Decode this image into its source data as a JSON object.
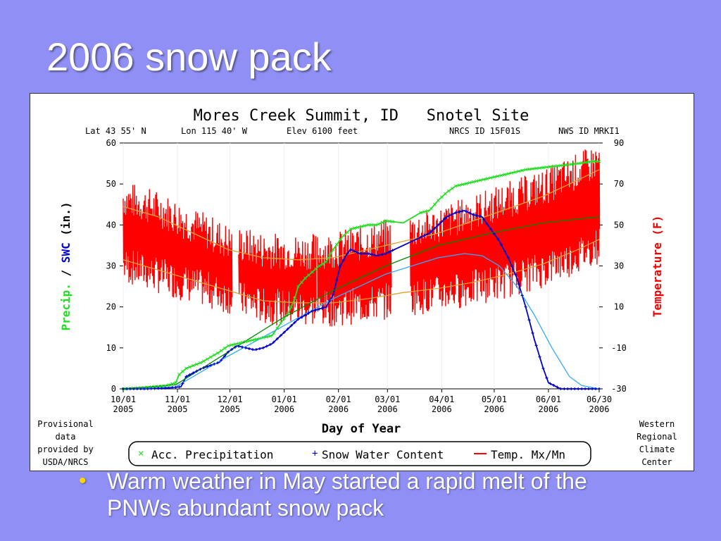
{
  "slide": {
    "title": "2006 snow pack",
    "bullet": "Warm weather in May started a rapid melt of the PNWs abundant snow pack"
  },
  "colors": {
    "background": "#8f8ff5",
    "precip": "#22dd22",
    "swc": "#0000cc",
    "swc_avg": "#33aaff",
    "precip_avg": "#008800",
    "temp": "#ff0000",
    "temp_avg": "#e0a030"
  },
  "chart_data": {
    "type": "line",
    "title": "Mores Creek Summit, ID   Snotel Site",
    "site_info": [
      "Lat 43 55' N",
      "Lon 115 40' W",
      "Elev  6100 feet",
      "NRCS ID 15F01S",
      "NWS ID MRKI1"
    ],
    "xlabel": "Day of Year",
    "ylabel_left_parts": [
      "Precip.",
      " / ",
      "SWC",
      " (in.)"
    ],
    "ylabel_right": "Temperature (F)",
    "ylim_left": [
      0,
      60
    ],
    "ylim_right": [
      -30,
      90
    ],
    "xlim_days": [
      0,
      272
    ],
    "left_ticks": [
      "0",
      "10",
      "20",
      "30",
      "40",
      "50",
      "60"
    ],
    "right_ticks": [
      "-30",
      "-10",
      "10",
      "30",
      "50",
      "70",
      "90"
    ],
    "x_ticks": [
      {
        "day": 0,
        "l1": "10/01",
        "l2": "2005"
      },
      {
        "day": 31,
        "l1": "11/01",
        "l2": "2005"
      },
      {
        "day": 61,
        "l1": "12/01",
        "l2": "2005"
      },
      {
        "day": 92,
        "l1": "01/01",
        "l2": "2006"
      },
      {
        "day": 123,
        "l1": "02/01",
        "l2": "2006"
      },
      {
        "day": 151,
        "l1": "03/01",
        "l2": "2006"
      },
      {
        "day": 182,
        "l1": "04/01",
        "l2": "2006"
      },
      {
        "day": 212,
        "l1": "05/01",
        "l2": "2006"
      },
      {
        "day": 243,
        "l1": "06/01",
        "l2": "2006"
      },
      {
        "day": 272,
        "l1": "06/30",
        "l2": "2006"
      }
    ],
    "legend": [
      "Acc. Precipitation",
      "Snow Water Content",
      "Temp. Mx/Mn"
    ],
    "left_note": [
      "Provisional",
      "data",
      "provided by",
      "USDA/NRCS"
    ],
    "right_note": [
      "Western",
      "Regional",
      "Climate",
      "Center"
    ],
    "series": [
      {
        "name": "Acc. Precipitation",
        "axis": "left",
        "x": [
          0,
          12,
          25,
          30,
          32,
          36,
          45,
          55,
          60,
          65,
          75,
          80,
          85,
          90,
          95,
          98,
          100,
          104,
          108,
          112,
          116,
          120,
          125,
          130,
          135,
          140,
          145,
          150,
          160,
          170,
          175,
          180,
          185,
          190,
          200,
          210,
          220,
          230,
          240,
          250,
          260,
          268,
          272
        ],
        "y": [
          0,
          0.3,
          0.8,
          1.5,
          3.5,
          5,
          6.5,
          9,
          10.5,
          11,
          12,
          12.5,
          13,
          16,
          19,
          22,
          25,
          27,
          28.5,
          30,
          31,
          34,
          37,
          39,
          39.5,
          40,
          40,
          41,
          40.5,
          43,
          43.5,
          46,
          48,
          49.5,
          50.5,
          51.5,
          52.5,
          53.5,
          54,
          54.5,
          55,
          55.5,
          55.5
        ]
      },
      {
        "name": "Snow Water Content",
        "axis": "left",
        "x": [
          0,
          12,
          25,
          33,
          36,
          45,
          55,
          60,
          65,
          70,
          75,
          80,
          85,
          90,
          95,
          100,
          104,
          108,
          112,
          116,
          120,
          124,
          128,
          130,
          135,
          140,
          145,
          150,
          160,
          170,
          175,
          180,
          185,
          190,
          195,
          200,
          205,
          210,
          215,
          220,
          225,
          230,
          235,
          240,
          243,
          250,
          260,
          272
        ],
        "y": [
          0,
          0,
          0.2,
          0.5,
          3,
          5,
          6.5,
          9,
          10.5,
          10,
          9.5,
          10,
          11,
          13,
          15,
          17,
          18,
          19,
          19.5,
          20,
          23,
          30,
          33,
          34,
          33,
          33,
          32.5,
          33,
          35,
          37,
          38,
          40,
          42,
          43,
          43.5,
          42.5,
          42,
          39,
          36,
          32,
          27,
          20,
          12,
          5,
          1.5,
          0,
          0,
          0
        ]
      },
      {
        "name": "Avg SWC",
        "axis": "left",
        "x": [
          0,
          30,
          60,
          90,
          120,
          150,
          180,
          195,
          205,
          215,
          225,
          235,
          245,
          255,
          262,
          272
        ],
        "y": [
          0,
          0.5,
          8,
          15,
          22,
          28,
          32,
          33,
          32.5,
          30,
          25,
          18,
          10,
          3,
          0.8,
          0
        ]
      },
      {
        "name": "Avg Precip",
        "axis": "left",
        "x": [
          0,
          30,
          60,
          90,
          120,
          150,
          180,
          210,
          240,
          272
        ],
        "y": [
          0,
          1,
          9,
          17,
          24,
          30,
          35,
          38,
          40.5,
          42
        ]
      }
    ],
    "temp_avg": {
      "x": [
        0,
        20,
        40,
        60,
        80,
        100,
        120,
        140,
        160,
        180,
        200,
        220,
        240,
        260,
        272
      ],
      "max": [
        59,
        54,
        46,
        38,
        34,
        33,
        34,
        38,
        42,
        46,
        52,
        58,
        64,
        72,
        77
      ],
      "min": [
        33,
        28,
        23,
        18,
        13,
        12,
        12,
        14,
        17,
        19,
        22,
        26,
        31,
        38,
        43
      ]
    },
    "temp_ranges_days": [
      [
        0,
        62
      ],
      [
        66,
        110
      ],
      [
        111,
        153
      ],
      [
        164,
        272
      ]
    ]
  }
}
